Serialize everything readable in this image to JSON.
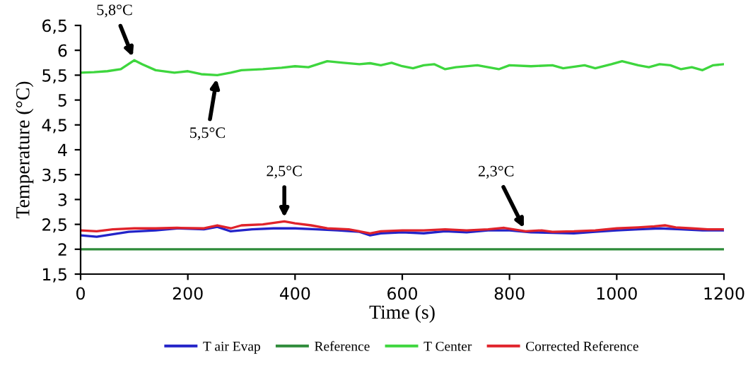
{
  "chart_data": {
    "type": "line",
    "xlabel": "Time (s)",
    "ylabel": "Temperature (°C)",
    "xlim": [
      0,
      1200
    ],
    "xticks": [
      0,
      200,
      400,
      600,
      800,
      1000,
      1200
    ],
    "ylim": [
      1.5,
      6.5
    ],
    "yticks": [
      {
        "value": 1.5,
        "label": "1,5"
      },
      2,
      {
        "value": 2.5,
        "label": "2,5"
      },
      3,
      {
        "value": 3.5,
        "label": "3,5"
      },
      4,
      {
        "value": 4.5,
        "label": "4,5"
      },
      5,
      {
        "value": 5.5,
        "label": "5,5"
      },
      6,
      {
        "value": 6.5,
        "label": "6,5"
      }
    ],
    "grid": false,
    "legend": "bottom",
    "marker": "none",
    "line_style": "solid",
    "series": [
      {
        "name": "T air Evap",
        "color": "#2323c8",
        "x": [
          0,
          30,
          60,
          90,
          140,
          180,
          230,
          255,
          280,
          320,
          360,
          400,
          440,
          480,
          520,
          540,
          560,
          600,
          640,
          680,
          720,
          760,
          800,
          840,
          880,
          920,
          960,
          1000,
          1040,
          1080,
          1120,
          1160,
          1200
        ],
        "values": [
          2.28,
          2.25,
          2.3,
          2.35,
          2.38,
          2.42,
          2.4,
          2.45,
          2.36,
          2.4,
          2.42,
          2.42,
          2.4,
          2.38,
          2.35,
          2.28,
          2.32,
          2.34,
          2.32,
          2.36,
          2.34,
          2.38,
          2.38,
          2.34,
          2.33,
          2.32,
          2.35,
          2.38,
          2.4,
          2.42,
          2.4,
          2.38,
          2.38
        ]
      },
      {
        "name": "Reference",
        "color": "#2e8b3a",
        "x": [
          0,
          1200
        ],
        "values": [
          2,
          2
        ]
      },
      {
        "name": "T Center",
        "color": "#3ed63e",
        "x": [
          0,
          25,
          50,
          75,
          100,
          115,
          140,
          175,
          200,
          225,
          255,
          280,
          300,
          340,
          375,
          400,
          425,
          460,
          490,
          520,
          540,
          560,
          580,
          600,
          620,
          640,
          660,
          680,
          700,
          740,
          780,
          800,
          840,
          880,
          900,
          940,
          960,
          990,
          1010,
          1040,
          1060,
          1080,
          1100,
          1120,
          1140,
          1160,
          1180,
          1200
        ],
        "values": [
          5.55,
          5.56,
          5.58,
          5.62,
          5.8,
          5.72,
          5.6,
          5.55,
          5.58,
          5.52,
          5.5,
          5.55,
          5.6,
          5.62,
          5.65,
          5.68,
          5.66,
          5.78,
          5.75,
          5.72,
          5.74,
          5.7,
          5.75,
          5.68,
          5.64,
          5.7,
          5.72,
          5.62,
          5.66,
          5.7,
          5.62,
          5.7,
          5.68,
          5.7,
          5.64,
          5.7,
          5.64,
          5.72,
          5.78,
          5.7,
          5.66,
          5.72,
          5.7,
          5.62,
          5.66,
          5.6,
          5.7,
          5.72
        ]
      },
      {
        "name": "Corrected Reference",
        "color": "#e0232b",
        "x": [
          0,
          30,
          60,
          100,
          140,
          180,
          230,
          255,
          280,
          300,
          340,
          380,
          400,
          430,
          460,
          500,
          540,
          560,
          600,
          640,
          680,
          720,
          760,
          790,
          830,
          860,
          880,
          920,
          960,
          1000,
          1040,
          1070,
          1090,
          1110,
          1140,
          1170,
          1200
        ],
        "values": [
          2.38,
          2.36,
          2.4,
          2.42,
          2.42,
          2.43,
          2.42,
          2.48,
          2.42,
          2.48,
          2.5,
          2.56,
          2.52,
          2.48,
          2.42,
          2.4,
          2.32,
          2.36,
          2.38,
          2.38,
          2.4,
          2.38,
          2.4,
          2.43,
          2.36,
          2.38,
          2.35,
          2.36,
          2.38,
          2.42,
          2.44,
          2.46,
          2.48,
          2.44,
          2.42,
          2.4,
          2.4
        ]
      }
    ],
    "annotations": [
      {
        "text": "5,8°C",
        "x": 100,
        "y": 5.8
      },
      {
        "text": "5,5°C",
        "x": 255,
        "y": 5.5
      },
      {
        "text": "2,5°C",
        "x": 380,
        "y": 2.56
      },
      {
        "text": "2,3°C",
        "x": 830,
        "y": 2.36
      }
    ]
  }
}
